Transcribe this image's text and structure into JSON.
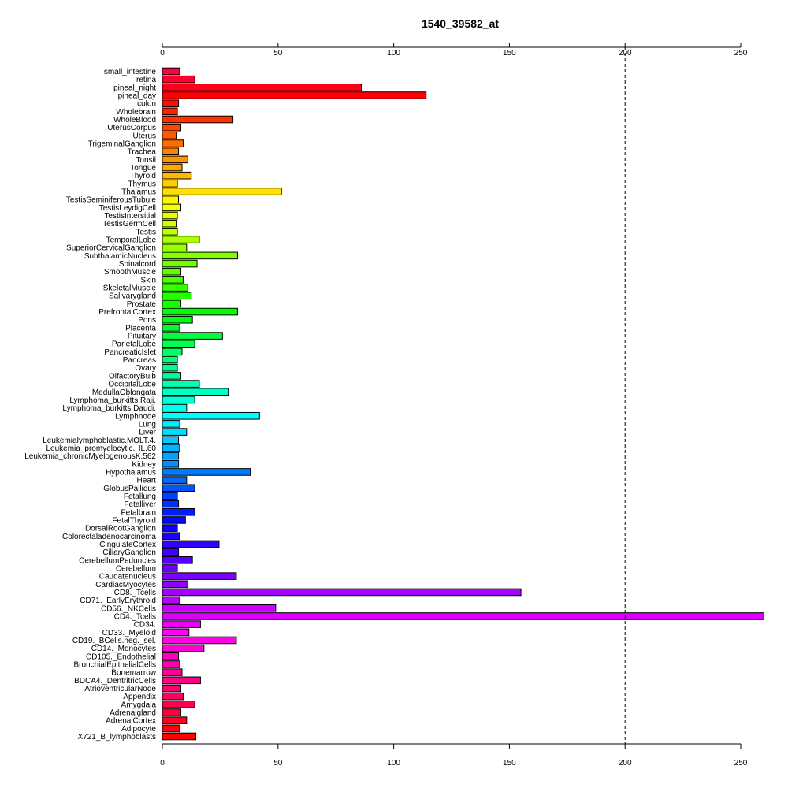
{
  "chart_data": {
    "type": "bar",
    "orientation": "horizontal",
    "title": "1540_39582_at",
    "xlabel": "",
    "ylabel": "",
    "xlim": [
      0,
      260
    ],
    "xticks": [
      0,
      50,
      100,
      150,
      200,
      250
    ],
    "reference_line": 200,
    "grid": false,
    "categories": [
      "small_intestine",
      "retina",
      "pineal_night",
      "pineal_day",
      "colon",
      "Wholebrain",
      "WholeBlood",
      "UterusCorpus",
      "Uterus",
      "TrigeminalGanglion",
      "Trachea",
      "Tonsil",
      "Tongue",
      "Thyroid",
      "Thymus",
      "Thalamus",
      "TestisSeminiferousTubule",
      "TestisLeydigCell",
      "TestisIntersitial",
      "TestisGermCell",
      "Testis",
      "TemporalLobe",
      "SuperiorCervicalGanglion",
      "SubthalamicNucleus",
      "Spinalcord",
      "SmoothMuscle",
      "Skin",
      "SkeletalMuscle",
      "Salivarygland",
      "Prostate",
      "PrefrontalCortex",
      "Pons",
      "Placenta",
      "Pituitary",
      "ParietalLobe",
      "PancreaticIslet",
      "Pancreas",
      "Ovary",
      "OlfactoryBulb",
      "OccipitalLobe",
      "MedullaOblongata",
      "Lymphoma_burkitts.Raji.",
      "Lymphoma_burkitts.Daudi.",
      "Lymphnode",
      "Lung",
      "Liver",
      "Leukemialymphoblastic.MOLT.4.",
      "Leukemia_promyelocytic.HL.60",
      "Leukemia_chronicMyelogenousK.562",
      "Kidney",
      "Hypothalamus",
      "Heart",
      "GlobusPallidus",
      "Fetallung",
      "Fetalliver",
      "Fetalbrain",
      "FetalThyroid",
      "DorsalRootGanglion",
      "Colorectaladenocarcinoma",
      "CingulateCortex",
      "CiliaryGanglion",
      "CerebellumPeduncles",
      "Cerebellum",
      "Caudatenucleus",
      "CardiacMyocytes",
      "CD8._Tcells",
      "CD71._EarlyErythroid",
      "CD56._NKCells",
      "CD4._Tcells",
      "CD34.",
      "CD33._Myeloid",
      "CD19._BCells.neg._sel.",
      "CD14._Monocytes",
      "CD105._Endothelial",
      "BronchialEpithelialCells",
      "Bonemarrow",
      "BDCA4._DentritricCells",
      "AtrioventricularNode",
      "Appendix",
      "Amygdala",
      "Adrenalgland",
      "AdrenalCortex",
      "Adipocyte",
      "X721_B_lymphoblasts"
    ],
    "values": [
      7.5,
      14,
      86,
      114,
      7,
      6.5,
      30.5,
      8,
      6,
      9,
      7,
      11,
      8.5,
      12.5,
      6.5,
      51.5,
      7,
      8,
      6.5,
      6,
      6.5,
      16,
      10.5,
      32.5,
      15,
      8,
      9,
      11,
      12.5,
      8,
      32.5,
      13,
      7.5,
      26,
      14,
      8.5,
      6.5,
      6.5,
      8,
      16,
      28.5,
      14,
      10.5,
      42,
      7.5,
      10.5,
      7,
      7.5,
      7,
      7,
      38,
      10.5,
      14,
      6.5,
      7,
      14,
      10,
      6.5,
      7.5,
      24.5,
      7,
      13,
      6.5,
      32,
      11,
      155,
      7.5,
      49,
      260,
      16.5,
      11.5,
      32,
      18,
      7,
      7.5,
      8.5,
      16.5,
      8,
      9,
      14,
      8,
      10.5,
      7.5,
      14.5
    ]
  }
}
